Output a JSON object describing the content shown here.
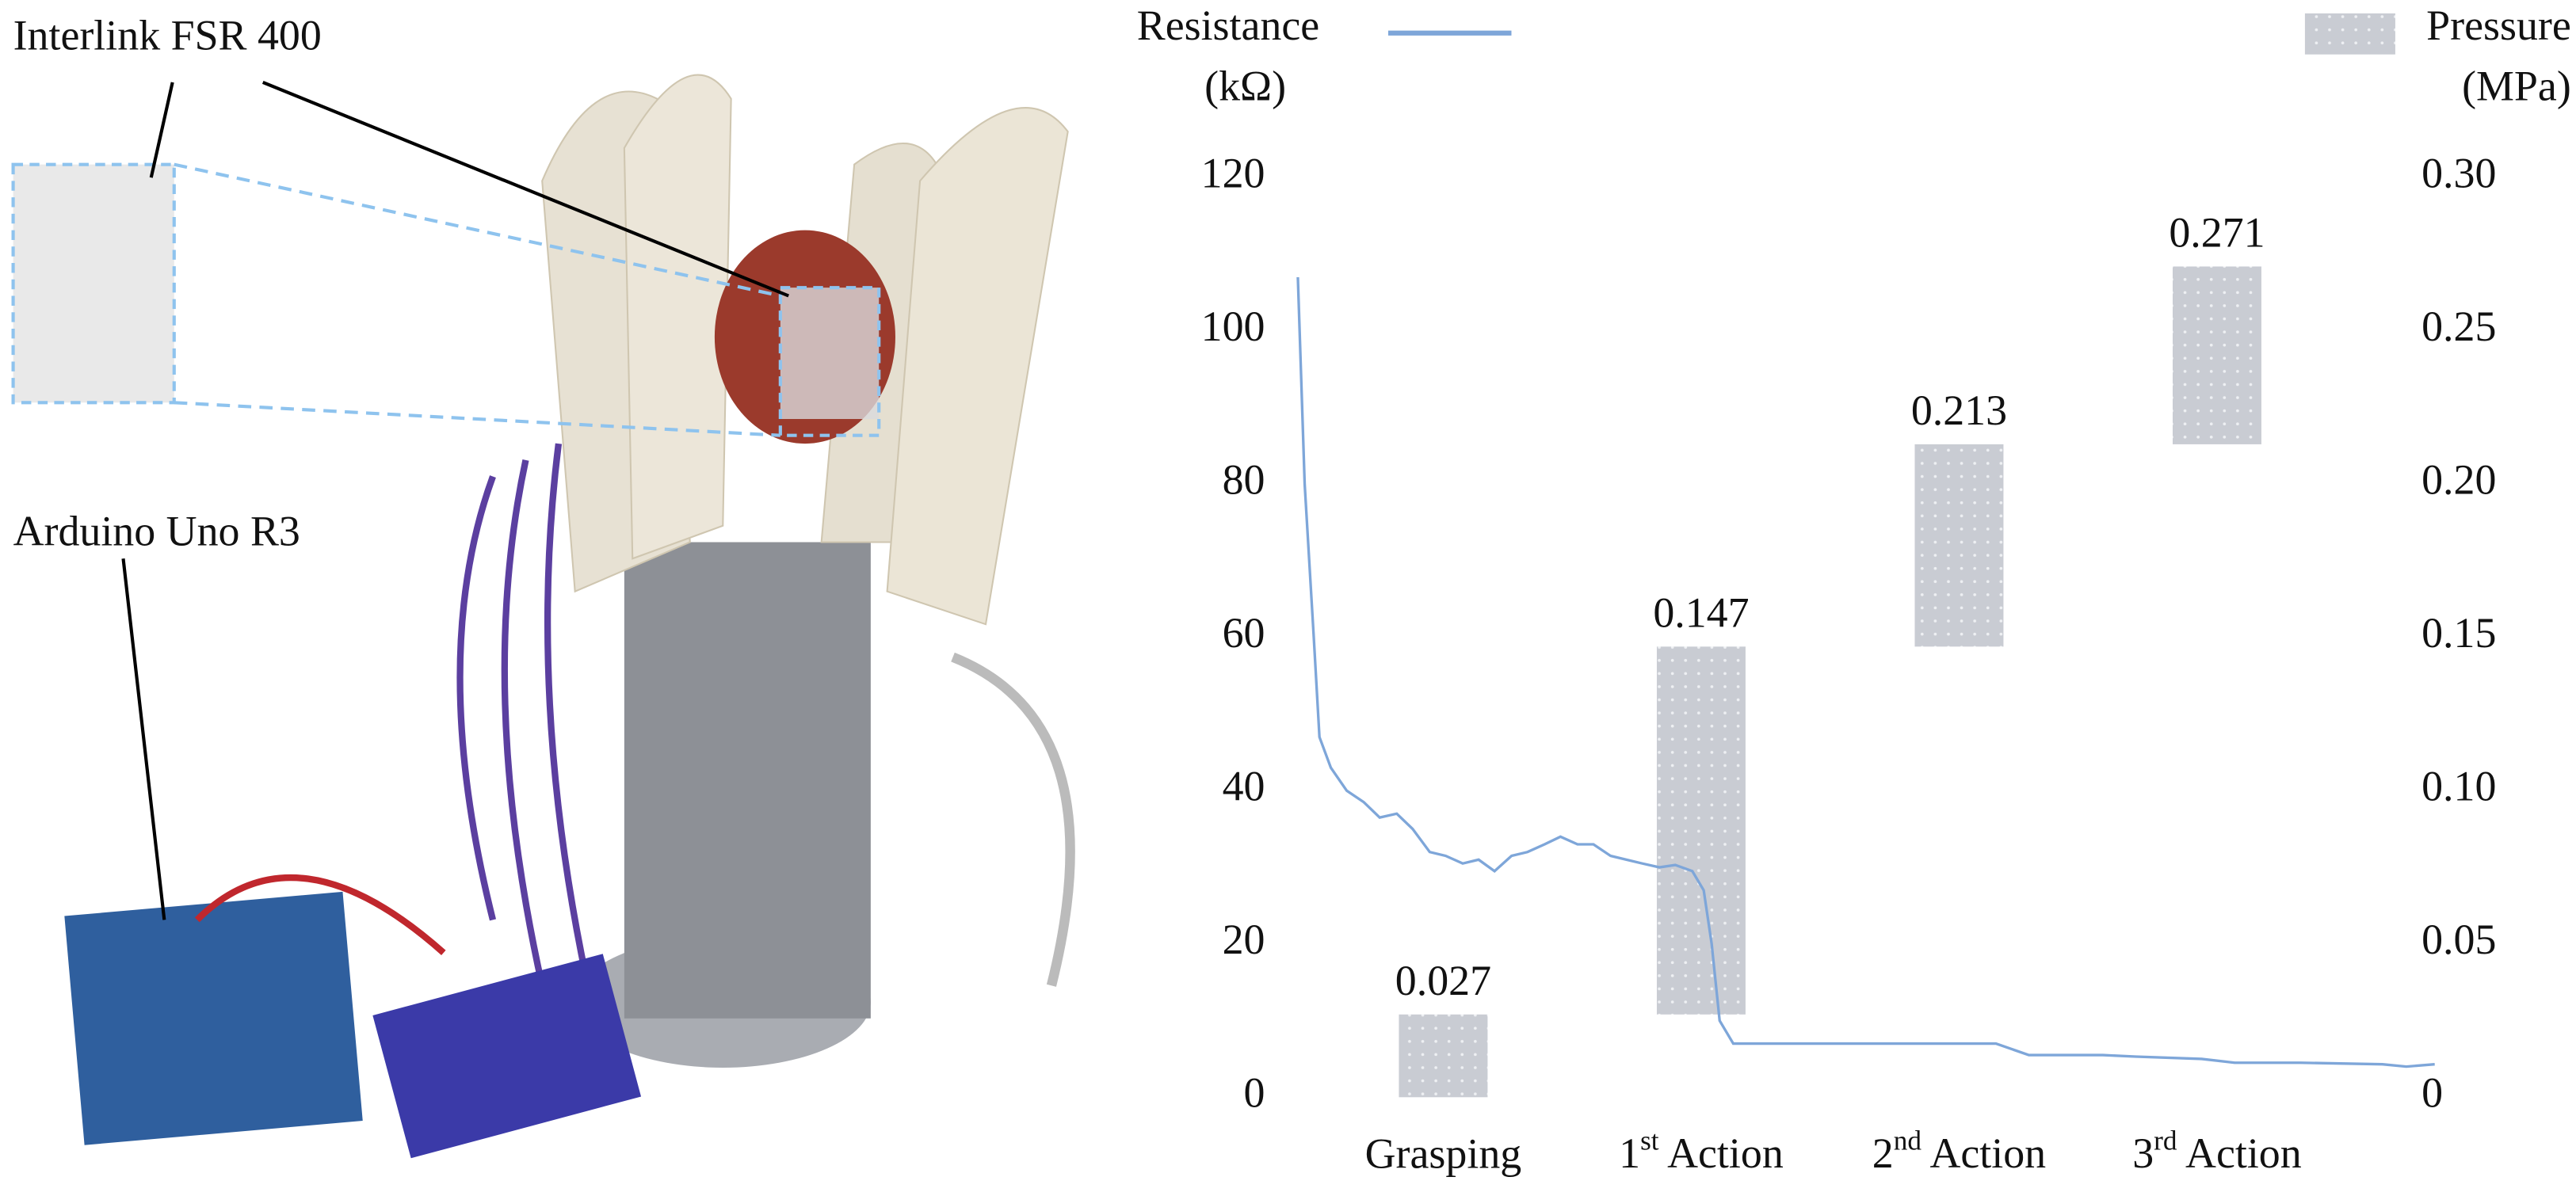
{
  "chart_data": {
    "type": "floating-bar-line",
    "annotations": [
      "Interlink FSR 400",
      "Arduino Uno R3"
    ],
    "categories": [
      "Grasping",
      "1st Action",
      "2nd Action",
      "3rd Action"
    ],
    "ylabel": "(kΩ)",
    "y2label": "(MPa)",
    "ylim": [
      0,
      120
    ],
    "yticks": [
      0,
      20,
      40,
      60,
      80,
      100,
      120
    ],
    "y2lim": [
      0,
      0.3
    ],
    "y2ticks": [
      0,
      0.05,
      {
        "value": 0.1,
        "label": "0.10"
      },
      0.15,
      {
        "value": 0.2,
        "label": "0.20"
      },
      0.25,
      {
        "value": 0.3,
        "label": "0.30"
      }
    ],
    "xlim": [
      0,
      100
    ],
    "bars": {
      "name": "Pressure",
      "color": "#c9ccd3",
      "axis": "y2",
      "base": [
        0,
        0.027,
        0.147,
        0.213
      ],
      "values": [
        0.027,
        0.147,
        0.213,
        0.271
      ]
    },
    "series": [
      {
        "name": "Resistance",
        "color": "#7ea6d9",
        "x": [
          0,
          0.6,
          1.4,
          1.9,
          2.9,
          4.3,
          5.8,
          7.2,
          8.7,
          10.1,
          11.6,
          13.0,
          14.5,
          15.9,
          17.3,
          18.8,
          20.2,
          21.7,
          23.1,
          24.6,
          26.0,
          27.5,
          28.9,
          30.3,
          31.8,
          33.2,
          34.7,
          35.7,
          36.4,
          37.1,
          38.3,
          44.8,
          52.0,
          59.2,
          61.4,
          64.3,
          70.8,
          73.7,
          79.5,
          82.4,
          88.2,
          95.4,
          97.5,
          100
        ],
        "values": [
          107,
          80,
          60,
          47,
          43,
          40,
          38.5,
          36.5,
          37,
          35,
          32,
          31.5,
          30.5,
          31,
          29.5,
          31.5,
          32,
          33,
          34,
          33,
          33,
          31.5,
          31,
          30.5,
          30,
          30.3,
          29.5,
          27,
          20,
          10,
          7,
          7,
          7,
          7,
          7,
          5.5,
          5.5,
          5.3,
          5,
          4.5,
          4.5,
          4.3,
          4,
          4.3
        ]
      }
    ]
  }
}
